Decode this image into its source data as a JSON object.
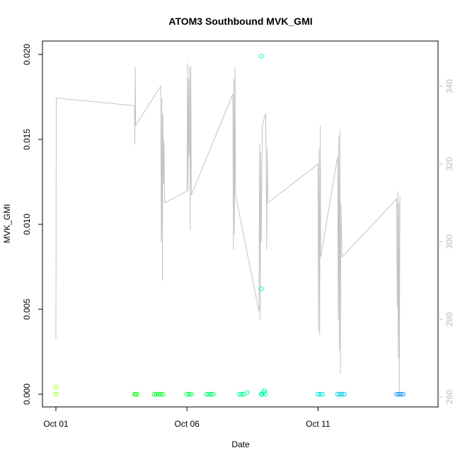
{
  "chart_data": {
    "type": "scatter",
    "title": "ATOM3 Southbound MVK_GMI",
    "xlabel": "Date",
    "ylabel": "MVK_GMI",
    "x_ticks": [
      {
        "label": "Oct 01",
        "value": "2016-10-01"
      },
      {
        "label": "Oct 06",
        "value": "2016-10-06"
      },
      {
        "label": "Oct 11",
        "value": "2016-10-11"
      }
    ],
    "xlim": [
      "2016-10-01T00:00",
      "2016-10-14T12:00"
    ],
    "ylim": [
      0.0,
      0.02
    ],
    "y_ticks": [
      "0.000",
      "0.005",
      "0.010",
      "0.015",
      "0.020"
    ],
    "y2lim": [
      260,
      340
    ],
    "y2_ticks": [
      "260",
      "280",
      "300",
      "320",
      "340"
    ],
    "grid": false,
    "colors": {
      "axis": "#000000",
      "secondary_axis": "#bbbbbb",
      "secondary_line": "#c4c4c4",
      "point_gradient": [
        "#90ff00",
        "#00ff40",
        "#00ffd0",
        "#1e90ff"
      ]
    },
    "series": [
      {
        "axis": "left",
        "kind": "points",
        "points": [
          [
            "2016-10-01T00:00",
            0.0004
          ],
          [
            "2016-10-01T00:00",
            0.0
          ],
          [
            "2016-10-04T00:00",
            0.0
          ],
          [
            "2016-10-04T01:00",
            0.0
          ],
          [
            "2016-10-04T02:00",
            0.0
          ],
          [
            "2016-10-04T18:00",
            0.0
          ],
          [
            "2016-10-04T20:00",
            0.0
          ],
          [
            "2016-10-04T22:00",
            0.0
          ],
          [
            "2016-10-05T00:00",
            0.0
          ],
          [
            "2016-10-05T02:00",
            0.0
          ],
          [
            "2016-10-06T00:00",
            0.0
          ],
          [
            "2016-10-06T02:00",
            0.0
          ],
          [
            "2016-10-06T04:00",
            0.0
          ],
          [
            "2016-10-06T18:00",
            0.0
          ],
          [
            "2016-10-06T20:00",
            0.0
          ],
          [
            "2016-10-06T22:00",
            0.0
          ],
          [
            "2016-10-07T00:00",
            0.0
          ],
          [
            "2016-10-08T00:00",
            0.0
          ],
          [
            "2016-10-08T02:00",
            0.0
          ],
          [
            "2016-10-08T04:00",
            0.0
          ],
          [
            "2016-10-08T07:00",
            0.0001
          ],
          [
            "2016-10-08T20:00",
            0.0199
          ],
          [
            "2016-10-08T20:00",
            0.0062
          ],
          [
            "2016-10-08T20:00",
            0.0
          ],
          [
            "2016-10-08T21:00",
            0.0
          ],
          [
            "2016-10-08T22:00",
            0.0001
          ],
          [
            "2016-10-08T23:00",
            0.0002
          ],
          [
            "2016-10-09T00:00",
            0.0
          ],
          [
            "2016-10-11T00:00",
            0.0
          ],
          [
            "2016-10-11T02:00",
            0.0
          ],
          [
            "2016-10-11T04:00",
            0.0
          ],
          [
            "2016-10-11T18:00",
            0.0
          ],
          [
            "2016-10-11T20:00",
            0.0
          ],
          [
            "2016-10-11T22:00",
            0.0
          ],
          [
            "2016-10-12T00:00",
            0.0
          ],
          [
            "2016-10-14T00:00",
            0.0
          ],
          [
            "2016-10-14T02:00",
            0.0
          ],
          [
            "2016-10-14T04:00",
            0.0
          ],
          [
            "2016-10-14T06:00",
            0.0
          ]
        ]
      },
      {
        "axis": "right",
        "kind": "line",
        "points": [
          [
            "2016-10-01T00:00",
            275
          ],
          [
            "2016-10-01T00:20",
            337
          ],
          [
            "2016-10-04T00:00",
            335
          ],
          [
            "2016-10-04T00:20",
            325
          ],
          [
            "2016-10-04T00:40",
            345
          ],
          [
            "2016-10-04T01:00",
            330
          ],
          [
            "2016-10-05T00:00",
            340
          ],
          [
            "2016-10-05T00:30",
            300
          ],
          [
            "2016-10-05T01:00",
            337
          ],
          [
            "2016-10-05T01:30",
            290
          ],
          [
            "2016-10-05T02:00",
            333
          ],
          [
            "2016-10-05T02:30",
            315
          ],
          [
            "2016-10-05T03:00",
            326
          ],
          [
            "2016-10-05T03:30",
            310
          ],
          [
            "2016-10-06T00:00",
            313
          ],
          [
            "2016-10-06T00:30",
            346
          ],
          [
            "2016-10-06T01:00",
            313
          ],
          [
            "2016-10-06T01:30",
            342
          ],
          [
            "2016-10-06T02:00",
            322
          ],
          [
            "2016-10-06T02:30",
            345
          ],
          [
            "2016-10-06T03:00",
            303
          ],
          [
            "2016-10-06T03:30",
            345
          ],
          [
            "2016-10-06T04:00",
            312
          ],
          [
            "2016-10-07T18:00",
            338
          ],
          [
            "2016-10-07T18:30",
            298
          ],
          [
            "2016-10-07T19:00",
            342
          ],
          [
            "2016-10-07T19:30",
            302
          ],
          [
            "2016-10-07T20:00",
            345
          ],
          [
            "2016-10-07T20:30",
            312
          ],
          [
            "2016-10-08T18:00",
            282
          ],
          [
            "2016-10-08T18:30",
            325
          ],
          [
            "2016-10-08T19:00",
            280
          ],
          [
            "2016-10-08T19:30",
            323
          ],
          [
            "2016-10-08T20:00",
            300
          ],
          [
            "2016-10-08T21:00",
            330
          ],
          [
            "2016-10-09T00:00",
            333
          ],
          [
            "2016-10-09T00:30",
            320
          ],
          [
            "2016-10-09T01:00",
            298
          ],
          [
            "2016-10-09T01:30",
            324
          ],
          [
            "2016-10-09T02:00",
            310
          ],
          [
            "2016-10-11T00:00",
            320
          ],
          [
            "2016-10-11T00:30",
            277
          ],
          [
            "2016-10-11T01:00",
            324
          ],
          [
            "2016-10-11T01:30",
            276
          ],
          [
            "2016-10-11T02:00",
            330
          ],
          [
            "2016-10-11T02:30",
            296
          ],
          [
            "2016-10-11T18:00",
            322
          ],
          [
            "2016-10-11T18:30",
            280
          ],
          [
            "2016-10-11T19:00",
            327
          ],
          [
            "2016-10-11T19:30",
            272
          ],
          [
            "2016-10-11T20:00",
            329
          ],
          [
            "2016-10-11T20:30",
            266
          ],
          [
            "2016-10-11T21:00",
            310
          ],
          [
            "2016-10-11T22:00",
            296
          ],
          [
            "2016-10-14T00:00",
            311
          ],
          [
            "2016-10-14T00:30",
            283
          ],
          [
            "2016-10-14T01:00",
            313
          ],
          [
            "2016-10-14T01:30",
            270
          ],
          [
            "2016-10-14T02:00",
            310
          ],
          [
            "2016-10-14T02:30",
            261
          ],
          [
            "2016-10-14T03:00",
            312
          ]
        ]
      }
    ]
  }
}
